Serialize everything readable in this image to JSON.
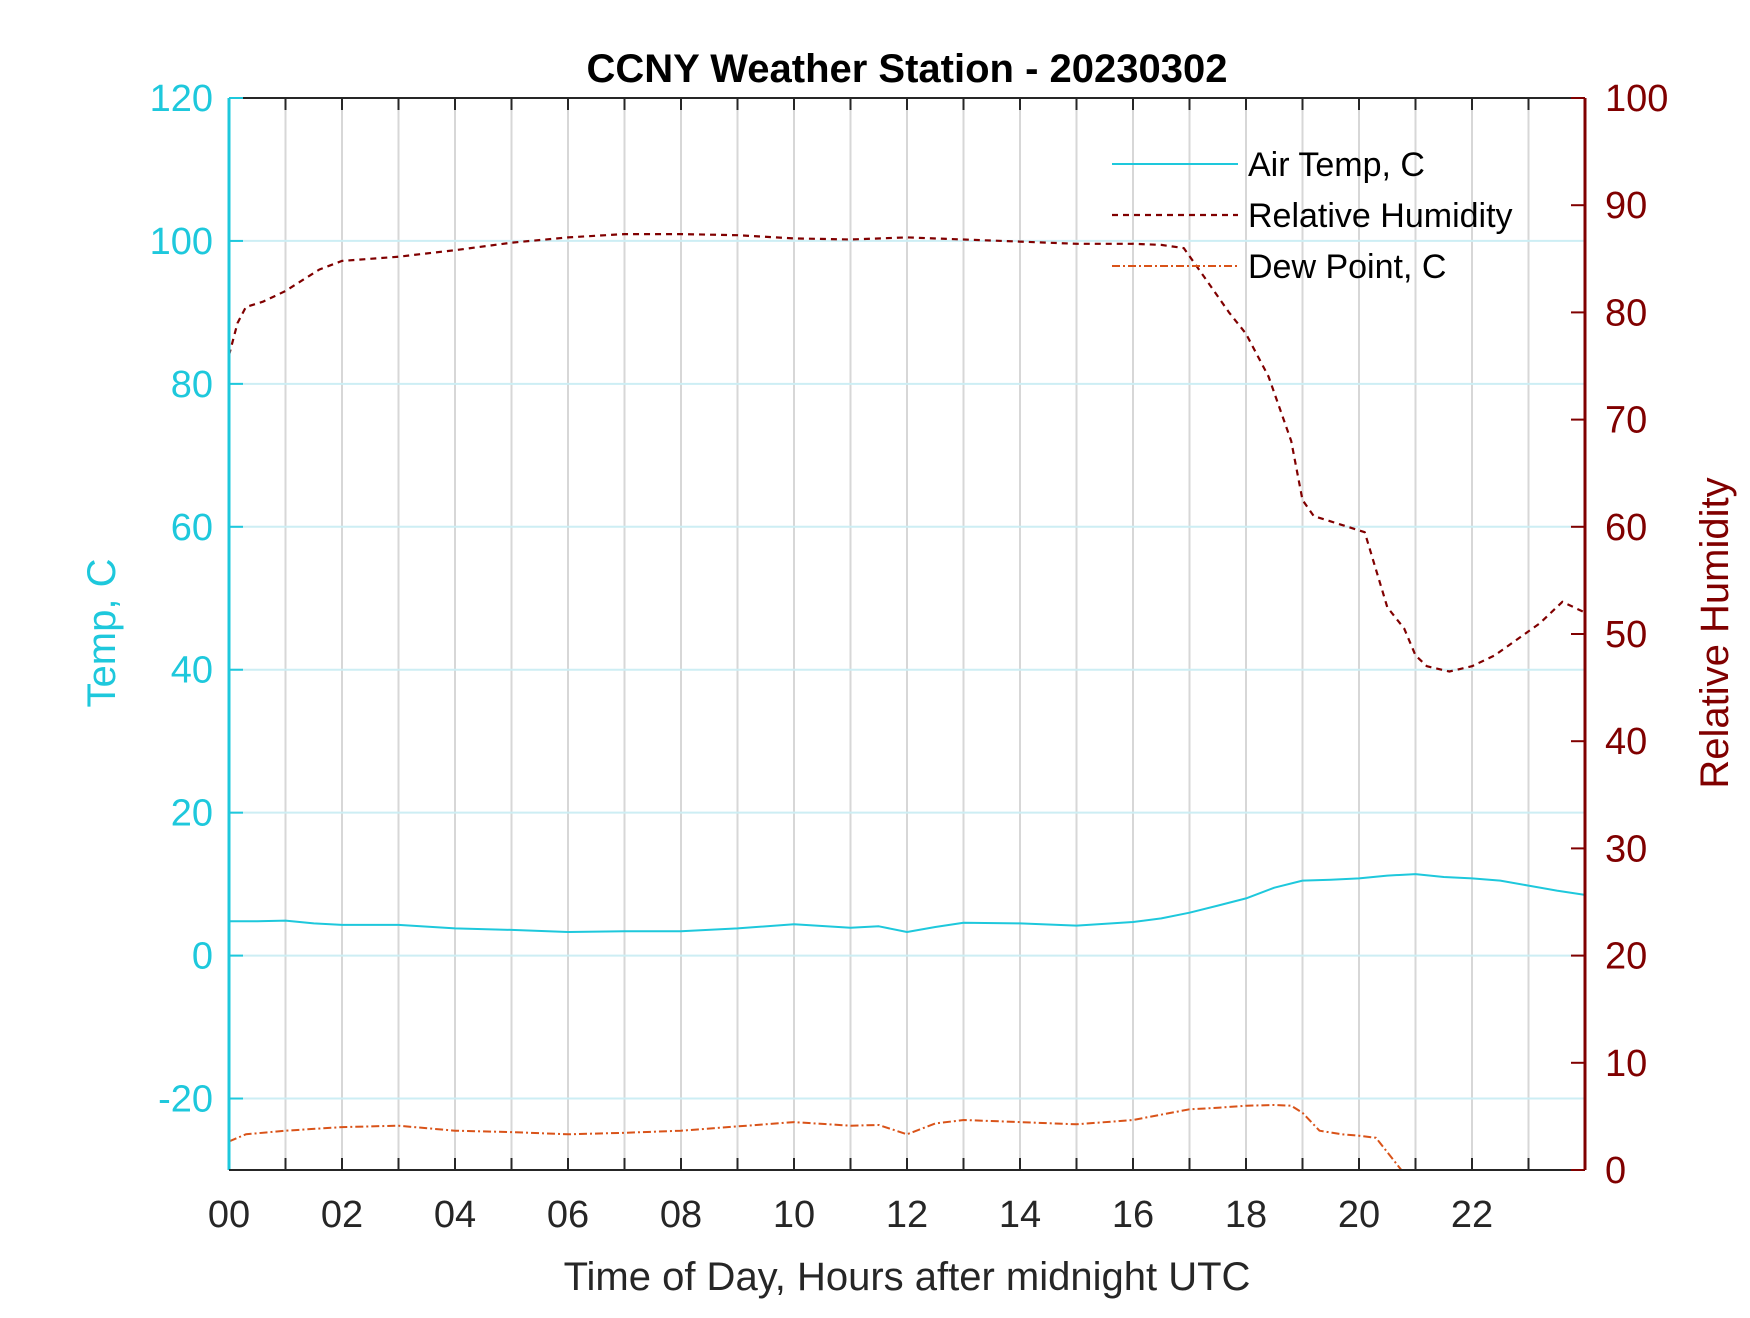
{
  "chart_data": {
    "type": "line",
    "title": "CCNY Weather Station - 20230302",
    "xlabel": "Time of Day, Hours after midnight UTC",
    "ylabel_left": "Temp, C",
    "ylabel_right": "Relative Humidity",
    "xlim": [
      0,
      24
    ],
    "ylim_left": [
      -30,
      120
    ],
    "ylim_right": [
      0,
      100
    ],
    "x_ticks": [
      0,
      2,
      4,
      6,
      8,
      10,
      12,
      14,
      16,
      18,
      20,
      22
    ],
    "x_tick_labels": [
      "00",
      "02",
      "04",
      "06",
      "08",
      "10",
      "12",
      "14",
      "16",
      "18",
      "20",
      "22"
    ],
    "y_left_ticks": [
      -20,
      0,
      20,
      40,
      60,
      80,
      100,
      120
    ],
    "y_left_tick_labels": [
      "-20",
      "0",
      "20",
      "40",
      "60",
      "80",
      "100",
      "120"
    ],
    "y_right_ticks": [
      0,
      10,
      20,
      30,
      40,
      50,
      60,
      70,
      80,
      90,
      100
    ],
    "y_right_tick_labels": [
      "0",
      "10",
      "20",
      "30",
      "40",
      "50",
      "60",
      "70",
      "80",
      "90",
      "100"
    ],
    "grid": true,
    "legend_position": "top-right",
    "colors": {
      "left_axis": "#1ec8dc",
      "right_axis": "#800000",
      "air_temp": "#1ec8dc",
      "humidity": "#800000",
      "dew_point": "#d95319",
      "grid_vertical": "#d7d7d7",
      "grid_horizontal": "#cdeef4"
    },
    "series": [
      {
        "name": "Air Temp, C",
        "axis": "left",
        "style": "solid",
        "x": [
          0,
          0.5,
          1,
          1.5,
          2,
          3,
          4,
          5,
          6,
          7,
          8,
          9,
          10,
          11,
          11.5,
          12,
          12.5,
          13,
          14,
          15,
          16,
          16.5,
          17,
          17.5,
          18,
          18.5,
          19,
          19.5,
          20,
          20.5,
          21,
          21.5,
          22,
          22.5,
          23,
          23.5,
          24
        ],
        "values": [
          4.8,
          4.8,
          4.9,
          4.5,
          4.3,
          4.3,
          3.8,
          3.6,
          3.3,
          3.4,
          3.4,
          3.8,
          4.4,
          3.9,
          4.1,
          3.3,
          4.0,
          4.6,
          4.5,
          4.2,
          4.7,
          5.2,
          6.0,
          7.0,
          8.0,
          9.5,
          10.5,
          10.6,
          10.8,
          11.2,
          11.4,
          11.0,
          10.8,
          10.5,
          9.8,
          9.1,
          8.5
        ]
      },
      {
        "name": "Relative Humidity",
        "axis": "right",
        "style": "dashed",
        "x": [
          0,
          0.15,
          0.3,
          0.6,
          1,
          1.3,
          1.6,
          2,
          2.5,
          3,
          4,
          5,
          6,
          7,
          8,
          9,
          10,
          11,
          12,
          13,
          14,
          15,
          16,
          16.5,
          16.9,
          17.3,
          17.7,
          18,
          18.4,
          18.8,
          19.0,
          19.2,
          19.5,
          19.8,
          20.1,
          20.3,
          20.5,
          20.8,
          21.0,
          21.2,
          21.6,
          22.0,
          22.4,
          22.8,
          23.2,
          23.6,
          24.0
        ],
        "values": [
          76,
          79,
          80.5,
          81,
          82,
          83,
          84,
          84.8,
          85,
          85.2,
          85.8,
          86.5,
          87,
          87.3,
          87.3,
          87.2,
          86.9,
          86.8,
          87.0,
          86.8,
          86.6,
          86.4,
          86.4,
          86.3,
          86.0,
          83.0,
          80.0,
          78.0,
          74.0,
          68.0,
          62.5,
          61.0,
          60.5,
          60.0,
          59.5,
          56.0,
          52.5,
          50.5,
          48.0,
          47.0,
          46.5,
          47.0,
          48.0,
          49.5,
          51.0,
          53.0,
          52.0
        ]
      },
      {
        "name": "Dew Point, C",
        "axis": "left",
        "style": "dashdot",
        "x": [
          0,
          0.3,
          1,
          2,
          3,
          4,
          5,
          6,
          7,
          8,
          9,
          10,
          11,
          11.5,
          12,
          12.5,
          13,
          14,
          15,
          16,
          17,
          17.5,
          18,
          18.5,
          18.8,
          19.0,
          19.3,
          19.7,
          20.0,
          20.3,
          20.6,
          20.75
        ],
        "values": [
          -26,
          -25,
          -24.5,
          -24,
          -23.8,
          -24.5,
          -24.7,
          -25,
          -24.8,
          -24.5,
          -23.9,
          -23.3,
          -23.8,
          -23.7,
          -25.0,
          -23.5,
          -23.0,
          -23.3,
          -23.6,
          -23.0,
          -21.5,
          -21.3,
          -21.0,
          -20.9,
          -21.0,
          -22.0,
          -24.5,
          -25.0,
          -25.2,
          -25.5,
          -28.5,
          -30
        ]
      }
    ]
  }
}
